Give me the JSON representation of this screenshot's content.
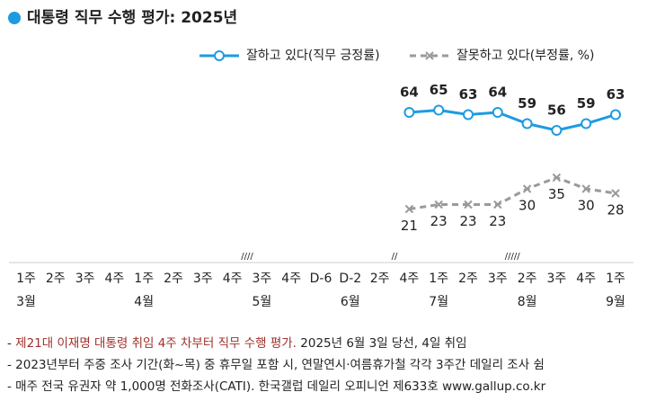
{
  "chart_data": {
    "type": "line",
    "title": "대통령 직무 수행 평가: 2025년",
    "categories": [
      "1주",
      "2주",
      "3주",
      "4주",
      "1주",
      "2주",
      "3주",
      "4주",
      "3주",
      "4주",
      "D-6",
      "D-2",
      "2주",
      "4주",
      "1주",
      "2주",
      "3주",
      "2주",
      "3주",
      "4주",
      "1주"
    ],
    "month_labels": [
      "3월",
      null,
      null,
      null,
      "4월",
      null,
      null,
      null,
      "5월",
      null,
      null,
      "6월",
      null,
      null,
      "7월",
      null,
      null,
      "8월",
      null,
      null,
      "9월"
    ],
    "axis_breaks": [
      "////",
      "//",
      "/////"
    ],
    "series": [
      {
        "name": "잘하고 있다(직무 긍정률)",
        "color": "#1e9be0",
        "marker": "circle",
        "values": [
          null,
          null,
          null,
          null,
          null,
          null,
          null,
          null,
          null,
          null,
          null,
          null,
          null,
          64,
          65,
          63,
          64,
          59,
          56,
          59,
          63
        ]
      },
      {
        "name": "잘못하고 있다(부정률, %)",
        "color": "#9a9a9a",
        "marker": "x",
        "dashed": true,
        "values": [
          null,
          null,
          null,
          null,
          null,
          null,
          null,
          null,
          null,
          null,
          null,
          null,
          null,
          21,
          23,
          23,
          23,
          30,
          35,
          30,
          28
        ]
      }
    ],
    "ylim": [
      0,
      100
    ],
    "notes": [
      [
        "- ",
        "제21대 이재명 대통령 취임 4주 차부터 직무 수행 평가.",
        " 2025년 6월 3일 당선, 4일 취임"
      ],
      [
        "- 2023년부터 주중 조사 기간(화~목) 중 휴무일 포함 시, 연말연시·여름휴가철 각각 3주간 데일리 조사 쉼"
      ],
      [
        "- 매주 전국 유권자 약 1,000명 전화조사(CATI). 한국갤럽 데일리 오피니언 제633호 www.gallup.co.kr"
      ]
    ]
  }
}
